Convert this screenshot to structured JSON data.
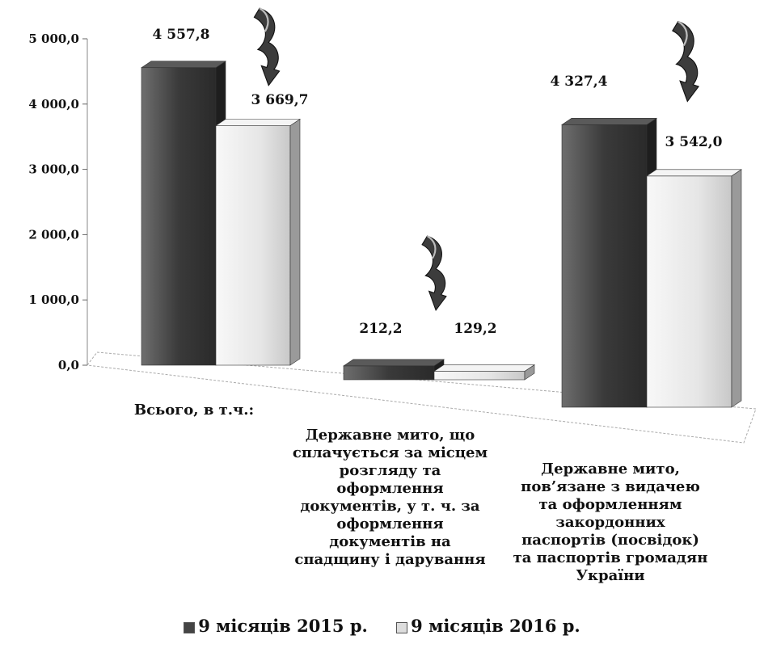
{
  "chart_data": {
    "type": "bar",
    "title": "",
    "xlabel": "",
    "ylabel": "",
    "ylim": [
      0,
      5000
    ],
    "yticks": [
      "0,0",
      "1 000,0",
      "2 000,0",
      "3 000,0",
      "4 000,0",
      "5 000,0"
    ],
    "categories": [
      "Всього, в т.ч.:",
      "Державне мито, що сплачується за місцем розгляду та оформлення документів, у т. ч. за оформлення документів на спадщину і дарування",
      "Державне мито, пов’язане з видачею та оформленням закордонних паспортів (посвідок) та паспортів громадян України"
    ],
    "series": [
      {
        "name": "9 місяців 2015 р.",
        "values": [
          4557.8,
          212.2,
          4327.4
        ],
        "labels": [
          "4 557,8",
          "212,2",
          "4 327,4"
        ],
        "color": "#4a4a4a"
      },
      {
        "name": "9 місяців 2016 р.",
        "values": [
          3669.7,
          129.2,
          3542.0
        ],
        "labels": [
          "3 669,7",
          "129,2",
          "3 542,0"
        ],
        "color": "#e8e8e8"
      }
    ],
    "grid": false,
    "legend_position": "bottom",
    "trend_icon": "down-arrow-icon"
  }
}
